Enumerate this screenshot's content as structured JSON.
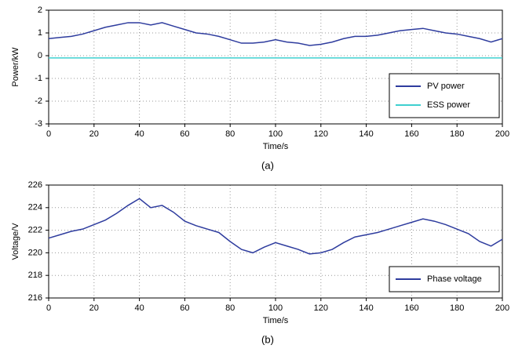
{
  "chart_data": [
    {
      "type": "line",
      "xlabel": "Time/s",
      "ylabel": "Power/kW",
      "caption": "(a)",
      "x": [
        0,
        5,
        10,
        15,
        20,
        25,
        30,
        35,
        40,
        45,
        50,
        55,
        60,
        65,
        70,
        75,
        80,
        85,
        90,
        95,
        100,
        105,
        110,
        115,
        120,
        125,
        130,
        135,
        140,
        145,
        150,
        155,
        160,
        165,
        170,
        175,
        180,
        185,
        190,
        195,
        200
      ],
      "series": [
        {
          "name": "PV power",
          "color": "#2e3c9e",
          "values": [
            0.75,
            0.8,
            0.85,
            0.95,
            1.1,
            1.25,
            1.35,
            1.45,
            1.45,
            1.35,
            1.45,
            1.3,
            1.15,
            1.0,
            0.95,
            0.85,
            0.7,
            0.55,
            0.55,
            0.6,
            0.7,
            0.6,
            0.55,
            0.45,
            0.5,
            0.6,
            0.75,
            0.85,
            0.85,
            0.9,
            1.0,
            1.1,
            1.15,
            1.2,
            1.1,
            1.0,
            0.95,
            0.85,
            0.75,
            0.6,
            0.75
          ]
        },
        {
          "name": "ESS power",
          "color": "#3fd0d0",
          "values": [
            -0.1,
            -0.1,
            -0.1,
            -0.1,
            -0.1,
            -0.1,
            -0.1,
            -0.1,
            -0.1,
            -0.1,
            -0.1,
            -0.1,
            -0.1,
            -0.1,
            -0.1,
            -0.1,
            -0.1,
            -0.1,
            -0.1,
            -0.1,
            -0.1,
            -0.1,
            -0.1,
            -0.1,
            -0.1,
            -0.1,
            -0.1,
            -0.1,
            -0.1,
            -0.1,
            -0.1,
            -0.1,
            -0.1,
            -0.1,
            -0.1,
            -0.1,
            -0.1,
            -0.1,
            -0.1,
            -0.1,
            -0.1
          ]
        }
      ],
      "xlim": [
        0,
        200
      ],
      "xticks": [
        0,
        20,
        40,
        60,
        80,
        100,
        120,
        140,
        160,
        180,
        200
      ],
      "ylim": [
        -3,
        2
      ],
      "yticks": [
        -3,
        -2,
        -1,
        0,
        1,
        2
      ],
      "grid": true,
      "legend": "lower right"
    },
    {
      "type": "line",
      "xlabel": "Time/s",
      "ylabel": "Voltage/V",
      "caption": "(b)",
      "x": [
        0,
        5,
        10,
        15,
        20,
        25,
        30,
        35,
        40,
        45,
        50,
        55,
        60,
        65,
        70,
        75,
        80,
        85,
        90,
        95,
        100,
        105,
        110,
        115,
        120,
        125,
        130,
        135,
        140,
        145,
        150,
        155,
        160,
        165,
        170,
        175,
        180,
        185,
        190,
        195,
        200
      ],
      "series": [
        {
          "name": "Phase voltage",
          "color": "#2e3c9e",
          "values": [
            221.3,
            221.6,
            221.9,
            222.1,
            222.5,
            222.9,
            223.5,
            224.2,
            224.8,
            224.0,
            224.2,
            223.6,
            222.8,
            222.4,
            222.1,
            221.8,
            221.0,
            220.3,
            220.0,
            220.5,
            220.9,
            220.6,
            220.3,
            219.9,
            220.0,
            220.3,
            220.9,
            221.4,
            221.6,
            221.8,
            222.1,
            222.4,
            222.7,
            223.0,
            222.8,
            222.5,
            222.1,
            221.7,
            221.0,
            220.6,
            221.2
          ]
        }
      ],
      "xlim": [
        0,
        200
      ],
      "xticks": [
        0,
        20,
        40,
        60,
        80,
        100,
        120,
        140,
        160,
        180,
        200
      ],
      "ylim": [
        216,
        226
      ],
      "yticks": [
        216,
        218,
        220,
        222,
        224,
        226
      ],
      "grid": true,
      "legend": "lower right"
    }
  ]
}
